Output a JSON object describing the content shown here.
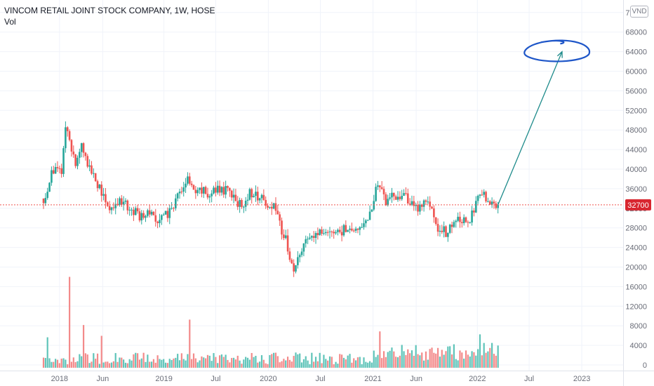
{
  "header": {
    "title": "VINCOM RETAIL JOINT STOCK COMPANY, 1W, HOSE",
    "volume_label": "Vol",
    "currency": "VND"
  },
  "colors": {
    "up": "#26a69a",
    "down": "#ef5350",
    "volume_up": "#5fc4b9",
    "volume_down": "#f38a8a",
    "price_line": "#ef5350",
    "price_tag": "#d8262f",
    "annotation_arrow": "#1e8b8b",
    "annotation_circle": "#1e56c8",
    "grid": "#f0f3fa",
    "text": "#131722",
    "axis_text": "#6a6d78"
  },
  "chart_data": {
    "type": "candlestick",
    "title": "VINCOM RETAIL JOINT STOCK COMPANY, 1W, HOSE",
    "ylim": [
      0,
      75000
    ],
    "y_ticks": [
      0,
      4000,
      8000,
      12000,
      16000,
      20000,
      24000,
      28000,
      32000,
      36000,
      40000,
      44000,
      48000,
      52000,
      56000,
      60000,
      64000,
      68000,
      72000
    ],
    "y_tick_labels": [
      "0",
      "4000",
      "8000",
      "12000",
      "16000",
      "20000",
      "24000",
      "28000",
      "32000",
      "36000",
      "40000",
      "44000",
      "48000",
      "52000",
      "56000",
      "60000",
      "64000",
      "68000",
      "72000"
    ],
    "x_tick_labels": [
      "2018",
      "Jun",
      "2019",
      "Jul",
      "2020",
      "Jul",
      "2021",
      "Jun",
      "2022",
      "Jul",
      "2023"
    ],
    "x_tick_dates": [
      "2018-01-01",
      "2018-06-01",
      "2019-01-01",
      "2019-07-01",
      "2020-01-01",
      "2020-07-01",
      "2021-01-01",
      "2021-06-01",
      "2022-01-01",
      "2022-07-01",
      "2023-01-01"
    ],
    "x_range": [
      "2017-11-06",
      "2023-05-01"
    ],
    "grid": true,
    "last_price": 32700,
    "last_price_label": "32700",
    "price_anchors": [
      [
        "2017-11-06",
        34000
      ],
      [
        "2017-11-27",
        37500
      ],
      [
        "2017-12-18",
        41500
      ],
      [
        "2018-01-08",
        38500
      ],
      [
        "2018-01-22",
        48000
      ],
      [
        "2018-02-05",
        46500
      ],
      [
        "2018-02-26",
        41000
      ],
      [
        "2018-03-19",
        44500
      ],
      [
        "2018-04-09",
        40500
      ],
      [
        "2018-05-07",
        37500
      ],
      [
        "2018-06-04",
        35000
      ],
      [
        "2018-06-25",
        32000
      ],
      [
        "2018-07-23",
        33500
      ],
      [
        "2018-08-20",
        32500
      ],
      [
        "2018-09-17",
        31500
      ],
      [
        "2018-10-15",
        30000
      ],
      [
        "2018-11-12",
        31500
      ],
      [
        "2018-12-10",
        29500
      ],
      [
        "2019-01-07",
        30500
      ],
      [
        "2019-02-04",
        32000
      ],
      [
        "2019-03-04",
        36500
      ],
      [
        "2019-03-25",
        38500
      ],
      [
        "2019-04-15",
        35000
      ],
      [
        "2019-05-13",
        36000
      ],
      [
        "2019-06-10",
        34500
      ],
      [
        "2019-07-08",
        36500
      ],
      [
        "2019-08-05",
        35500
      ],
      [
        "2019-09-02",
        34000
      ],
      [
        "2019-09-30",
        32500
      ],
      [
        "2019-10-28",
        35000
      ],
      [
        "2019-11-25",
        34500
      ],
      [
        "2019-12-23",
        33500
      ],
      [
        "2020-01-20",
        32000
      ],
      [
        "2020-02-10",
        28500
      ],
      [
        "2020-03-02",
        26000
      ],
      [
        "2020-03-16",
        21000
      ],
      [
        "2020-03-30",
        19000
      ],
      [
        "2020-04-13",
        22500
      ],
      [
        "2020-05-04",
        25000
      ],
      [
        "2020-06-01",
        27000
      ],
      [
        "2020-07-06",
        26500
      ],
      [
        "2020-08-03",
        27500
      ],
      [
        "2020-09-07",
        27000
      ],
      [
        "2020-10-05",
        28500
      ],
      [
        "2020-11-02",
        27500
      ],
      [
        "2020-11-30",
        28500
      ],
      [
        "2020-12-21",
        31500
      ],
      [
        "2021-01-11",
        35500
      ],
      [
        "2021-01-25",
        37000
      ],
      [
        "2021-02-15",
        33000
      ],
      [
        "2021-03-15",
        34500
      ],
      [
        "2021-04-12",
        35000
      ],
      [
        "2021-05-10",
        33500
      ],
      [
        "2021-06-07",
        31500
      ],
      [
        "2021-06-28",
        33500
      ],
      [
        "2021-07-26",
        32000
      ],
      [
        "2021-08-16",
        28000
      ],
      [
        "2021-09-13",
        27000
      ],
      [
        "2021-10-11",
        28500
      ],
      [
        "2021-11-08",
        30000
      ],
      [
        "2021-12-06",
        29500
      ],
      [
        "2021-12-27",
        32500
      ],
      [
        "2022-01-10",
        35000
      ],
      [
        "2022-01-31",
        34500
      ],
      [
        "2022-02-21",
        32500
      ],
      [
        "2022-03-14",
        32700
      ]
    ],
    "volume_spikes": [
      [
        "2017-11-20",
        6200
      ],
      [
        "2018-02-05",
        18500
      ],
      [
        "2018-03-26",
        8700
      ],
      [
        "2018-05-28",
        6500
      ],
      [
        "2019-04-01",
        9800
      ],
      [
        "2021-01-25",
        7400
      ],
      [
        "2022-01-10",
        6800
      ]
    ],
    "annotations": {
      "arrow_from": [
        "2022-03-14",
        32700
      ],
      "arrow_to": [
        "2022-10-24",
        64000
      ],
      "circle_center": [
        "2022-10-10",
        64200
      ]
    }
  }
}
